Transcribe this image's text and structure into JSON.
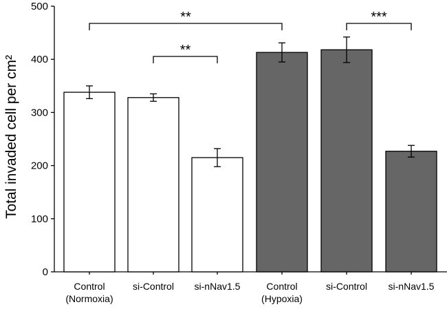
{
  "chart_data": {
    "type": "bar",
    "categories": [
      [
        "Control",
        "(Normoxia)"
      ],
      [
        "si-Control"
      ],
      [
        "si-nNav1.5"
      ],
      [
        "Control",
        "(Hypoxia)"
      ],
      [
        "si-Control"
      ],
      [
        "si-nNav1.5"
      ]
    ],
    "values": [
      338,
      328,
      215,
      413,
      418,
      227
    ],
    "errors": [
      12,
      7,
      17,
      18,
      24,
      11
    ],
    "bar_colors": [
      "#ffffff",
      "#ffffff",
      "#ffffff",
      "#666666",
      "#666666",
      "#666666"
    ],
    "bar_stroke": "#000000",
    "ylabel": "Total invaded cell per cm²",
    "xlabel": "",
    "ylim": [
      0,
      500
    ],
    "yticks": [
      0,
      100,
      200,
      300,
      400,
      500
    ],
    "grid": false,
    "significance": [
      {
        "from": 0,
        "to": 3,
        "label": "**"
      },
      {
        "from": 1,
        "to": 2,
        "label": "**"
      },
      {
        "from": 4,
        "to": 5,
        "label": "***"
      }
    ]
  }
}
